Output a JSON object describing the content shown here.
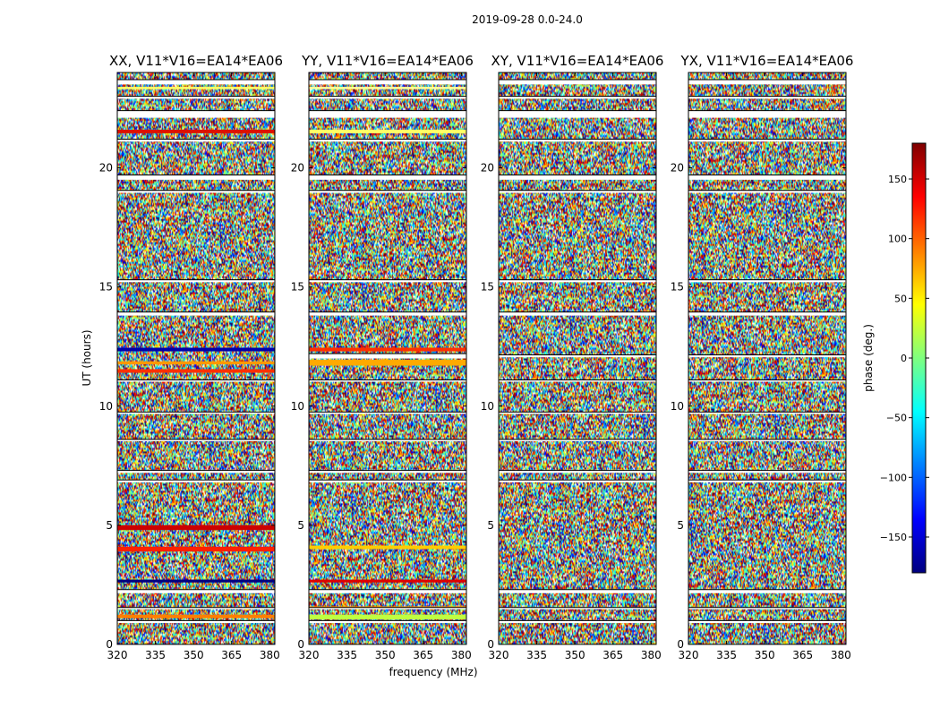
{
  "chart_data": {
    "type": "heatmap",
    "title": "2019-09-28 0.0-24.0",
    "xlabel": "frequency (MHz)",
    "ylabel": "UT (hours)",
    "xlim": [
      320,
      382
    ],
    "ylim": [
      0,
      24
    ],
    "x_ticks": [
      320,
      335,
      350,
      365,
      380
    ],
    "y_ticks": [
      0,
      5,
      10,
      15,
      20
    ],
    "colorbar": {
      "label": "phase (deg.)",
      "range": [
        -180,
        180
      ],
      "ticks": [
        150,
        100,
        50,
        0,
        -50,
        -100,
        -150
      ],
      "tick_labels": [
        "150",
        "100",
        "50",
        "0",
        "−50",
        "−100",
        "−150"
      ],
      "colormap": "jet",
      "colors": [
        "#00007f",
        "#0000ff",
        "#007fff",
        "#00ffff",
        "#7fff7f",
        "#ffff00",
        "#ff7f00",
        "#ff0000",
        "#7f0000"
      ]
    },
    "panels": [
      {
        "title": "XX, V11*V16=EA14*EA06",
        "flagged_hours": [
          [
            0.9,
            1.0
          ],
          [
            1.5,
            1.55
          ],
          [
            2.15,
            2.3
          ],
          [
            6.8,
            6.9
          ],
          [
            7.2,
            7.3
          ],
          [
            8.55,
            8.6
          ],
          [
            9.7,
            9.75
          ],
          [
            11.05,
            11.1
          ],
          [
            13.8,
            13.95
          ],
          [
            15.2,
            15.3
          ],
          [
            18.95,
            19.05
          ],
          [
            19.5,
            19.7
          ],
          [
            21.1,
            21.2
          ],
          [
            22.1,
            22.4
          ],
          [
            22.9,
            23.0
          ],
          [
            23.5,
            23.7
          ]
        ],
        "stripe_hours": [
          [
            1.1,
            1.25,
            "#ff7f00"
          ],
          [
            2.6,
            2.72,
            "#00007f"
          ],
          [
            3.9,
            4.1,
            "#ff2000"
          ],
          [
            4.8,
            5.0,
            "#cc0000"
          ],
          [
            11.4,
            11.55,
            "#ff3000"
          ],
          [
            11.75,
            11.88,
            "#ff9900"
          ],
          [
            12.3,
            12.45,
            "#0000aa"
          ],
          [
            21.45,
            21.6,
            "#dd1100"
          ],
          [
            23.3,
            23.4,
            "#ffff66"
          ]
        ]
      },
      {
        "title": "YY, V11*V16=EA14*EA06",
        "flagged_hours": [
          [
            0.9,
            1.0
          ],
          [
            1.5,
            1.55
          ],
          [
            2.15,
            2.3
          ],
          [
            6.8,
            6.9
          ],
          [
            7.2,
            7.3
          ],
          [
            8.55,
            8.6
          ],
          [
            9.7,
            9.75
          ],
          [
            11.05,
            11.1
          ],
          [
            12.0,
            12.2
          ],
          [
            13.8,
            13.95
          ],
          [
            15.2,
            15.3
          ],
          [
            18.95,
            19.05
          ],
          [
            19.5,
            19.7
          ],
          [
            21.1,
            21.2
          ],
          [
            22.1,
            22.4
          ],
          [
            22.9,
            23.0
          ],
          [
            23.5,
            23.7
          ]
        ],
        "stripe_hours": [
          [
            1.05,
            1.25,
            "#bfff40"
          ],
          [
            1.5,
            1.6,
            "#ff9900"
          ],
          [
            2.6,
            2.72,
            "#dd0000"
          ],
          [
            4.0,
            4.15,
            "#ffcc00"
          ],
          [
            11.7,
            11.95,
            "#ffaa00"
          ],
          [
            12.3,
            12.45,
            "#ff3000"
          ],
          [
            21.45,
            21.6,
            "#ffff66"
          ],
          [
            23.3,
            23.4,
            "#ffff99"
          ]
        ]
      },
      {
        "title": "XY, V11*V16=EA14*EA06",
        "flagged_hours": [
          [
            0.9,
            1.0
          ],
          [
            1.5,
            1.55
          ],
          [
            2.15,
            2.3
          ],
          [
            6.8,
            6.9
          ],
          [
            7.2,
            7.3
          ],
          [
            8.55,
            8.6
          ],
          [
            9.7,
            9.75
          ],
          [
            11.05,
            11.1
          ],
          [
            12.05,
            12.15
          ],
          [
            13.8,
            13.95
          ],
          [
            15.2,
            15.3
          ],
          [
            18.95,
            19.05
          ],
          [
            19.5,
            19.7
          ],
          [
            21.1,
            21.2
          ],
          [
            22.1,
            22.4
          ],
          [
            22.9,
            23.0
          ],
          [
            23.5,
            23.7
          ]
        ],
        "stripe_hours": []
      },
      {
        "title": "YX, V11*V16=EA14*EA06",
        "flagged_hours": [
          [
            0.9,
            1.0
          ],
          [
            1.5,
            1.55
          ],
          [
            2.15,
            2.3
          ],
          [
            6.8,
            6.9
          ],
          [
            7.2,
            7.3
          ],
          [
            8.55,
            8.6
          ],
          [
            9.7,
            9.75
          ],
          [
            11.05,
            11.1
          ],
          [
            12.05,
            12.15
          ],
          [
            13.8,
            13.95
          ],
          [
            15.2,
            15.3
          ],
          [
            18.95,
            19.05
          ],
          [
            19.5,
            19.7
          ],
          [
            21.1,
            21.2
          ],
          [
            22.1,
            22.4
          ],
          [
            22.9,
            23.0
          ],
          [
            23.5,
            23.7
          ]
        ],
        "stripe_hours": []
      }
    ]
  }
}
